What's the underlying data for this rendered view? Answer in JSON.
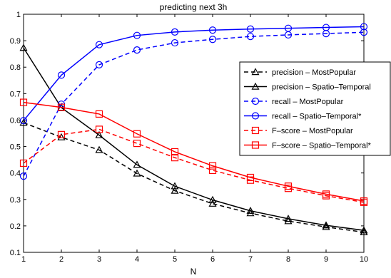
{
  "chart_data": {
    "type": "line",
    "title": "predicting next 3h",
    "xlabel": "N",
    "ylabel": "",
    "xlim": [
      1,
      10
    ],
    "ylim": [
      0.1,
      1.0
    ],
    "x": [
      1,
      2,
      3,
      4,
      5,
      6,
      7,
      8,
      9,
      10
    ],
    "xticks": [
      "1",
      "2",
      "3",
      "4",
      "5",
      "6",
      "7",
      "8",
      "9",
      "10"
    ],
    "yticks": [
      "0.1",
      "0.2",
      "0.3",
      "0.4",
      "0.5",
      "0.6",
      "0.7",
      "0.8",
      "0.9",
      "1"
    ],
    "grid": false,
    "legend_position": "right",
    "series": [
      {
        "name": "precision – MostPopular",
        "color": "#000000",
        "dash": "dashed",
        "marker": "triangle",
        "values": [
          0.59,
          0.535,
          0.487,
          0.398,
          0.333,
          0.284,
          0.248,
          0.218,
          0.196,
          0.176
        ]
      },
      {
        "name": "precision – Spatio–Temporal",
        "color": "#000000",
        "dash": "solid",
        "marker": "triangle",
        "values": [
          0.873,
          0.647,
          0.543,
          0.431,
          0.35,
          0.298,
          0.257,
          0.227,
          0.202,
          0.183
        ]
      },
      {
        "name": "recall – MostPopular",
        "color": "#0000ff",
        "dash": "dashed",
        "marker": "circle",
        "values": [
          0.388,
          0.66,
          0.809,
          0.865,
          0.892,
          0.905,
          0.916,
          0.922,
          0.927,
          0.932
        ]
      },
      {
        "name": "recall – Spatio–Temporal*",
        "color": "#0000ff",
        "dash": "solid",
        "marker": "circle",
        "values": [
          0.598,
          0.77,
          0.885,
          0.92,
          0.933,
          0.94,
          0.944,
          0.947,
          0.95,
          0.953
        ]
      },
      {
        "name": "F–score – MostPopular",
        "color": "#ff0000",
        "dash": "dashed",
        "marker": "square",
        "values": [
          0.437,
          0.545,
          0.565,
          0.512,
          0.458,
          0.41,
          0.373,
          0.342,
          0.314,
          0.289
        ]
      },
      {
        "name": "F–score – Spatio–Temporal*",
        "color": "#ff0000",
        "dash": "solid",
        "marker": "square",
        "values": [
          0.667,
          0.648,
          0.623,
          0.548,
          0.48,
          0.427,
          0.383,
          0.35,
          0.32,
          0.294
        ]
      }
    ]
  }
}
